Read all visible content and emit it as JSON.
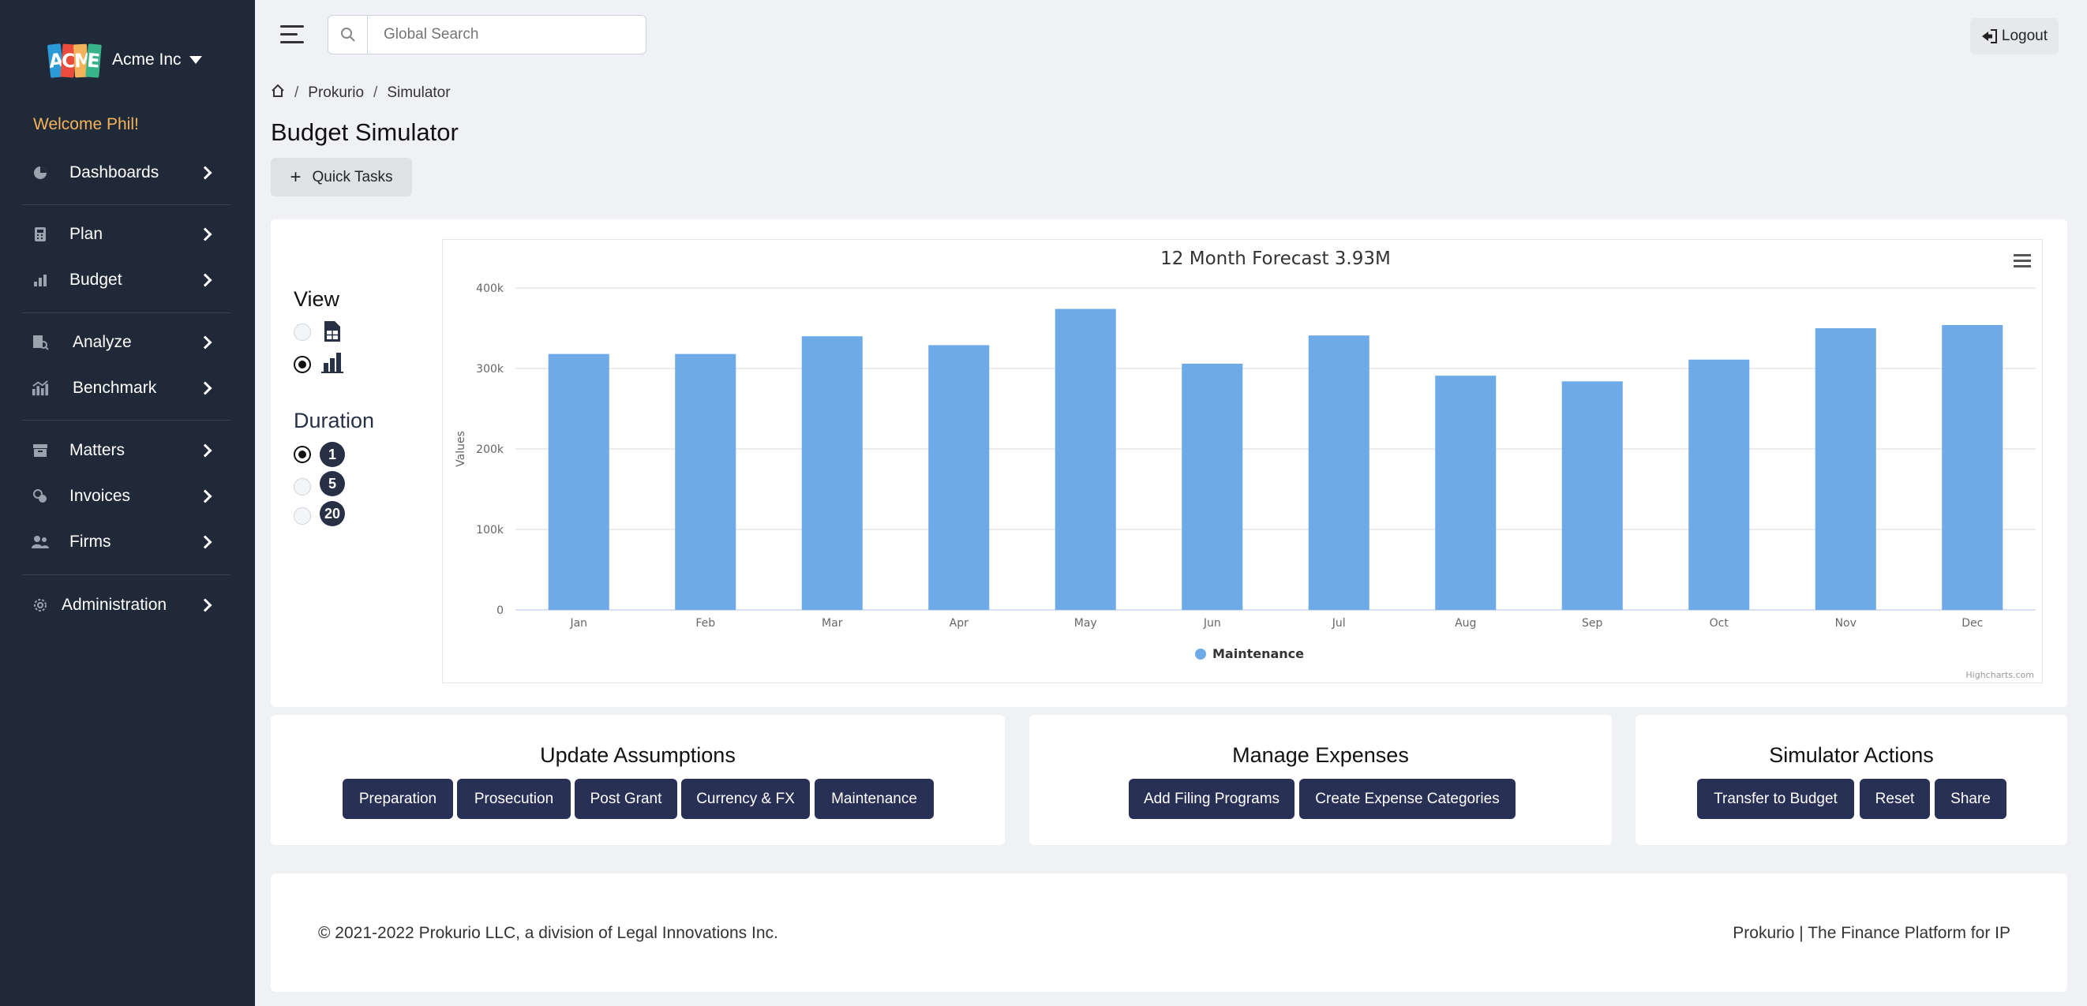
{
  "sidebar": {
    "brand": "Acme Inc",
    "logo_letters": [
      "A",
      "C",
      "M",
      "E"
    ],
    "welcome": "Welcome Phil!",
    "items": [
      {
        "label": "Dashboards",
        "icon": "pie-chart-icon"
      },
      {
        "label": "Plan",
        "icon": "calculator-icon"
      },
      {
        "label": "Budget",
        "icon": "bar-chart-icon"
      },
      {
        "label": "Analyze",
        "icon": "analyze-icon"
      },
      {
        "label": "Benchmark",
        "icon": "benchmark-icon"
      },
      {
        "label": "Matters",
        "icon": "archive-icon"
      },
      {
        "label": "Invoices",
        "icon": "coins-icon"
      },
      {
        "label": "Firms",
        "icon": "people-icon"
      },
      {
        "label": "Administration",
        "icon": "gear-icon"
      }
    ]
  },
  "topbar": {
    "search_placeholder": "Global Search",
    "logout_label": "Logout"
  },
  "breadcrumb": [
    "Prokurio",
    "Simulator"
  ],
  "page_title": "Budget Simulator",
  "quick_tasks_label": "Quick Tasks",
  "view": {
    "title": "View",
    "options": [
      "table-view",
      "chart-view"
    ],
    "selected": "chart-view"
  },
  "duration": {
    "title": "Duration",
    "options": [
      "1",
      "5",
      "20"
    ],
    "selected": "1"
  },
  "chart_data": {
    "type": "bar",
    "title": "12 Month Forecast 3.93M",
    "ylabel": "Values",
    "xlabel": "",
    "categories": [
      "Jan",
      "Feb",
      "Mar",
      "Apr",
      "May",
      "Jun",
      "Jul",
      "Aug",
      "Sep",
      "Oct",
      "Nov",
      "Dec"
    ],
    "series": [
      {
        "name": "Maintenance",
        "values": [
          318000,
          318000,
          340000,
          329000,
          374000,
          306000,
          341000,
          291000,
          284000,
          311000,
          350000,
          354000
        ],
        "color": "#6eaae8"
      }
    ],
    "ylim": [
      0,
      400000
    ],
    "yticks": [
      "0",
      "100k",
      "200k",
      "300k",
      "400k"
    ],
    "grid": true,
    "legend": "bottom-center",
    "credits": "Highcharts.com"
  },
  "update_assumptions": {
    "title": "Update Assumptions",
    "buttons": [
      "Preparation",
      "Prosecution",
      "Post Grant",
      "Currency & FX",
      "Maintenance"
    ]
  },
  "manage_expenses": {
    "title": "Manage Expenses",
    "buttons": [
      "Add Filing Programs",
      "Create Expense Categories"
    ]
  },
  "simulator_actions": {
    "title": "Simulator Actions",
    "buttons": [
      "Transfer to Budget",
      "Reset",
      "Share"
    ]
  },
  "footer": {
    "left": "© 2021-2022 Prokurio LLC, a division of Legal Innovations Inc.",
    "right": "Prokurio | The Finance Platform for IP"
  },
  "colors": {
    "sidebar_bg": "#1f2937",
    "accent_dark": "#283056",
    "bar": "#6eaae8",
    "welcome": "#f4b35b"
  }
}
